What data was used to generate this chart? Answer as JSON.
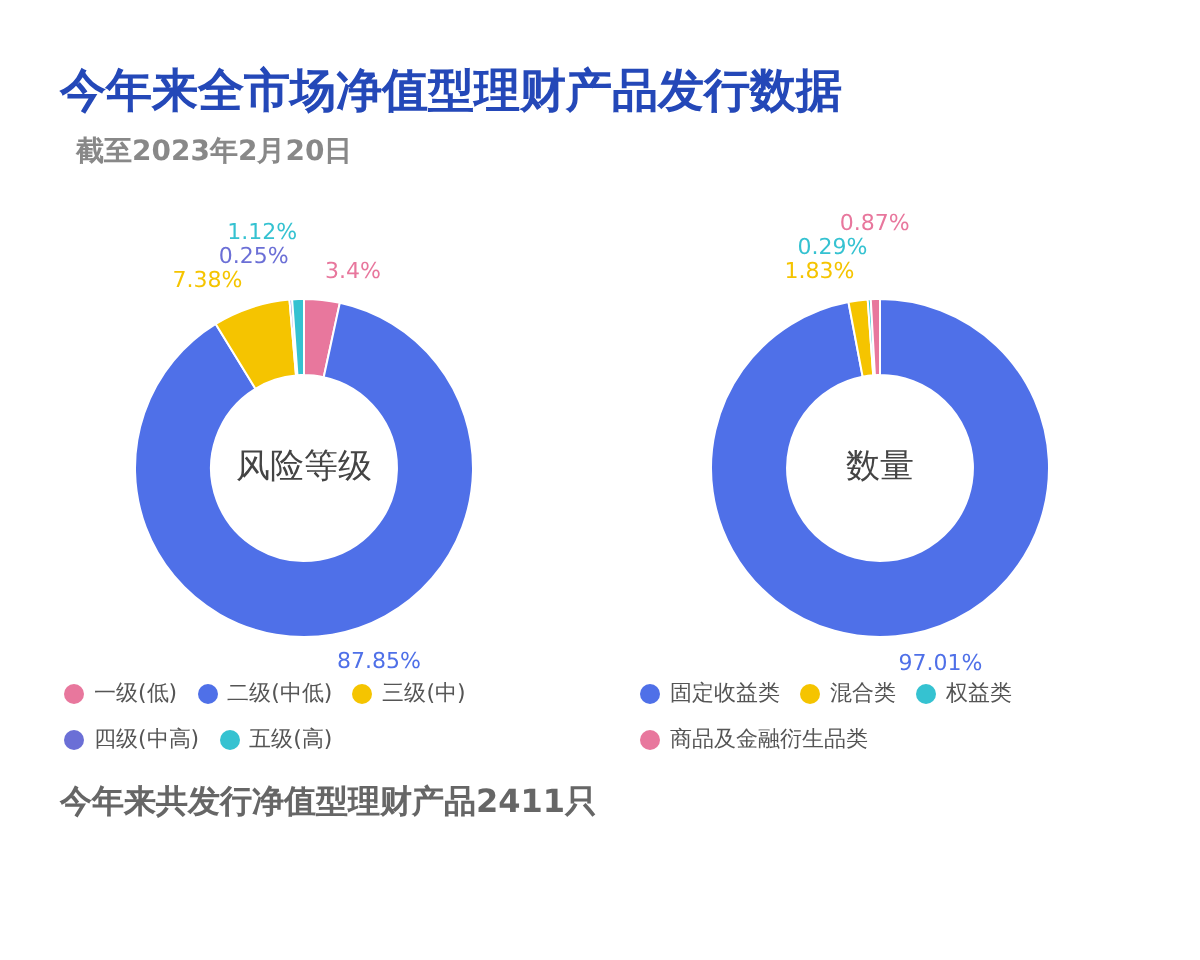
{
  "chart_data": [
    {
      "type": "donut",
      "title": "今年来全市场净值型理财产品发行数据",
      "subtitle": "截至2023年2月20日",
      "annotations": [
        "风险等级",
        "今年来共发行净值型理财产品2411只"
      ],
      "categories": [
        "一级(低)",
        "二级(中低)",
        "三级(中)",
        "四级(中高)",
        "五级(高)"
      ],
      "values": [
        3.4,
        87.85,
        7.38,
        0.25,
        1.12
      ],
      "value_labels": [
        "3.4%",
        "87.85%",
        "7.38%",
        "0.25%",
        "1.12%"
      ],
      "colors": [
        "#e8779d",
        "#4f70e8",
        "#f5c400",
        "#6b6fd6",
        "#35c2d1"
      ],
      "legend": "bottom"
    },
    {
      "type": "donut",
      "annotations": [
        "数量"
      ],
      "categories": [
        "固定收益类",
        "混合类",
        "权益类",
        "商品及金融衍生品类"
      ],
      "values": [
        97.01,
        1.83,
        0.29,
        0.87
      ],
      "value_labels": [
        "97.01%",
        "1.83%",
        "0.29%",
        "0.87%"
      ],
      "colors": [
        "#4f70e8",
        "#f5c400",
        "#35c2d1",
        "#e8779d"
      ],
      "legend": "bottom"
    }
  ]
}
